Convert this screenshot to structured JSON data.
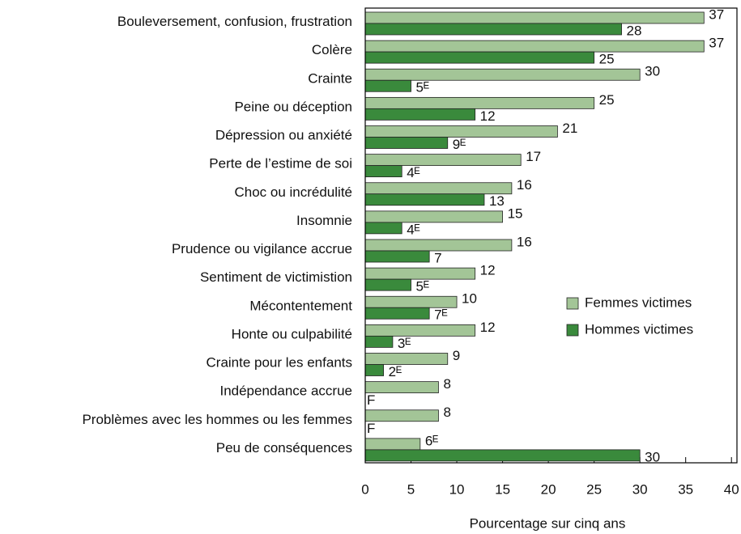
{
  "chart_data": {
    "type": "barh",
    "categories": [
      "Bouleversement, confusion, frustration",
      "Colère",
      "Crainte",
      "Peine ou déception",
      "Dépression ou anxiété",
      "Perte de l’estime de soi",
      "Choc ou incrédulité",
      "Insomnie",
      "Prudence ou vigilance accrue",
      "Sentiment de victimistion",
      "Mécontentement",
      "Honte ou culpabilité",
      "Crainte pour les enfants",
      "Indépendance accrue",
      "Problèmes avec les hommes ou les femmes",
      "Peu de conséquences"
    ],
    "series": [
      {
        "name": "Femmes victimes",
        "color": "#a3c597",
        "values": [
          37,
          37,
          30,
          25,
          21,
          17,
          16,
          15,
          16,
          12,
          10,
          12,
          9,
          8,
          8,
          6
        ],
        "value_labels": [
          "37",
          "37",
          "30",
          "25",
          "21",
          "17",
          "16",
          "15",
          "16",
          "12",
          "10",
          "12",
          "9",
          "8",
          "8",
          "6ᴱ"
        ]
      },
      {
        "name": "Hommes victimes",
        "color": "#3a8a3c",
        "values": [
          28,
          25,
          5,
          12,
          9,
          4,
          13,
          4,
          7,
          5,
          7,
          3,
          2,
          null,
          null,
          30
        ],
        "value_labels": [
          "28",
          "25",
          "5ᴱ",
          "12",
          "9ᴱ",
          "4ᴱ",
          "13",
          "4ᴱ",
          "7",
          "5ᴱ",
          "7ᴱ",
          "3ᴱ",
          "2ᴱ",
          "F",
          "F",
          "30"
        ]
      }
    ],
    "xlabel": "Pourcentage sur cinq ans",
    "xlim": [
      0,
      40.6
    ],
    "xticks": [
      0,
      5,
      10,
      15,
      20,
      25,
      30,
      35,
      40
    ],
    "legend": "right"
  }
}
